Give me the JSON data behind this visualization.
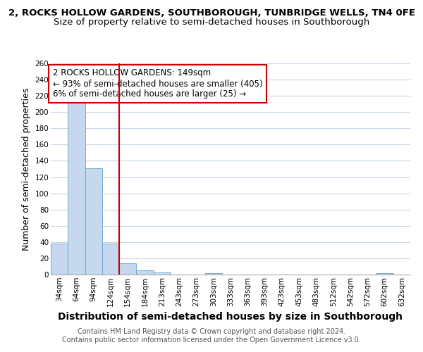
{
  "title_line1": "2, ROCKS HOLLOW GARDENS, SOUTHBOROUGH, TUNBRIDGE WELLS, TN4 0FE",
  "title_line2": "Size of property relative to semi-detached houses in Southborough",
  "xlabel": "Distribution of semi-detached houses by size in Southborough",
  "ylabel": "Number of semi-detached properties",
  "bar_labels": [
    "34sqm",
    "64sqm",
    "94sqm",
    "124sqm",
    "154sqm",
    "184sqm",
    "213sqm",
    "243sqm",
    "273sqm",
    "303sqm",
    "333sqm",
    "363sqm",
    "393sqm",
    "423sqm",
    "453sqm",
    "483sqm",
    "512sqm",
    "542sqm",
    "572sqm",
    "602sqm",
    "632sqm"
  ],
  "bar_values": [
    38,
    215,
    131,
    38,
    14,
    5,
    3,
    0,
    0,
    2,
    0,
    0,
    0,
    0,
    0,
    0,
    0,
    0,
    0,
    2,
    0
  ],
  "bar_color": "#c5d8ed",
  "bar_edge_color": "#6b9ec8",
  "vline_color": "#cc0000",
  "ylim": [
    0,
    260
  ],
  "yticks": [
    0,
    20,
    40,
    60,
    80,
    100,
    120,
    140,
    160,
    180,
    200,
    220,
    240,
    260
  ],
  "annotation_title": "2 ROCKS HOLLOW GARDENS: 149sqm",
  "annotation_line2": "← 93% of semi-detached houses are smaller (405)",
  "annotation_line3": "6% of semi-detached houses are larger (25) →",
  "annotation_box_color": "#ffffff",
  "annotation_border_color": "#cc0000",
  "footer_line1": "Contains HM Land Registry data © Crown copyright and database right 2024.",
  "footer_line2": "Contains public sector information licensed under the Open Government Licence v3.0.",
  "background_color": "#ffffff",
  "grid_color": "#c8d8e8",
  "title1_fontsize": 9.5,
  "title2_fontsize": 9.5,
  "xlabel_fontsize": 10,
  "ylabel_fontsize": 9,
  "tick_fontsize": 7.5,
  "footer_fontsize": 7,
  "annotation_fontsize": 8.5
}
